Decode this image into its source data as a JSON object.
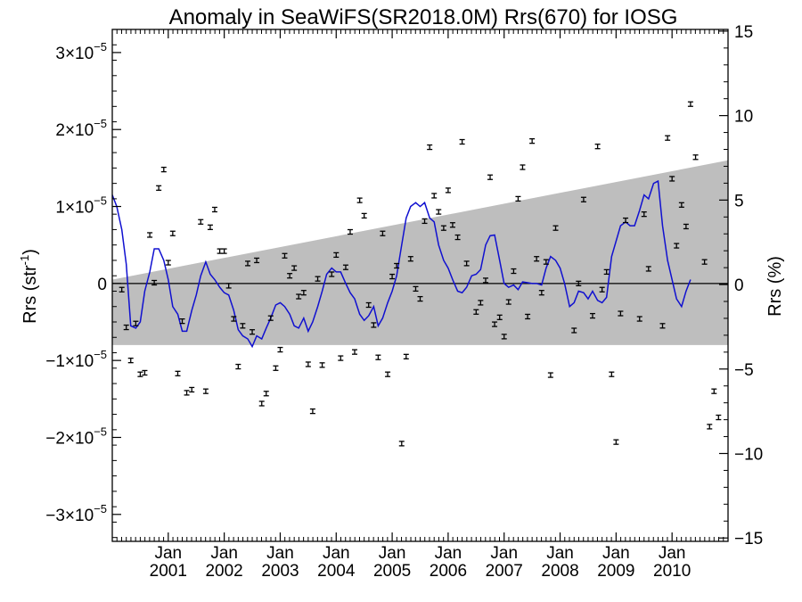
{
  "chart_data": {
    "type": "scatter",
    "title": "Anomaly in SeaWiFS(SR2018.0M) Rrs(670) for IOSG",
    "ylabel_left": {
      "main": "Rrs (str",
      "sup": "-1",
      "end": ")"
    },
    "ylabel_right": "Rrs (%)",
    "xlabel": "",
    "x_axis": {
      "range": [
        2000.0,
        2011.0
      ],
      "ticks": [
        {
          "x": 2001.0,
          "top": "Jan",
          "bottom": "2001"
        },
        {
          "x": 2002.0,
          "top": "Jan",
          "bottom": "2002"
        },
        {
          "x": 2003.0,
          "top": "Jan",
          "bottom": "2003"
        },
        {
          "x": 2004.0,
          "top": "Jan",
          "bottom": "2004"
        },
        {
          "x": 2005.0,
          "top": "Jan",
          "bottom": "2005"
        },
        {
          "x": 2006.0,
          "top": "Jan",
          "bottom": "2006"
        },
        {
          "x": 2007.0,
          "top": "Jan",
          "bottom": "2007"
        },
        {
          "x": 2008.0,
          "top": "Jan",
          "bottom": "2008"
        },
        {
          "x": 2009.0,
          "top": "Jan",
          "bottom": "2009"
        },
        {
          "x": 2010.0,
          "top": "Jan",
          "bottom": "2010"
        }
      ]
    },
    "y_left": {
      "range": [
        -3.35e-05,
        3.3e-05
      ],
      "ticks": [
        {
          "v": 3e-05,
          "label": "3×10",
          "exp": "−5"
        },
        {
          "v": 2e-05,
          "label": "2×10",
          "exp": "−5"
        },
        {
          "v": 1e-05,
          "label": "1×10",
          "exp": "−5"
        },
        {
          "v": 0,
          "label": "0",
          "exp": ""
        },
        {
          "v": -1e-05,
          "label": "−1×10",
          "exp": "−5"
        },
        {
          "v": -2e-05,
          "label": "−2×10",
          "exp": "−5"
        },
        {
          "v": -3e-05,
          "label": "−3×10",
          "exp": "−5"
        }
      ]
    },
    "y_right": {
      "range": [
        -15.2,
        15.1
      ],
      "ticks": [
        {
          "v": 15,
          "label": "15"
        },
        {
          "v": 10,
          "label": "10"
        },
        {
          "v": 5,
          "label": "5"
        },
        {
          "v": 0,
          "label": "0"
        },
        {
          "v": -5,
          "label": "−5"
        },
        {
          "v": -10,
          "label": "−10"
        },
        {
          "v": -15,
          "label": "−15"
        }
      ]
    },
    "band": {
      "upper": [
        [
          2000.0,
          5e-07
        ],
        [
          2011.0,
          1.6e-05
        ]
      ],
      "lower": [
        [
          2000.0,
          -8e-06
        ],
        [
          2011.0,
          -8e-06
        ]
      ]
    },
    "colors": {
      "band": "#bebebe",
      "smooth": "#1010d0",
      "points": "#000000",
      "zero": "#000000"
    },
    "points": [
      [
        2000.17,
        -0.08
      ],
      [
        2000.25,
        -0.57
      ],
      [
        2000.33,
        -1.0
      ],
      [
        2000.42,
        -0.52
      ],
      [
        2000.5,
        -1.18
      ],
      [
        2000.58,
        -1.16
      ],
      [
        2000.67,
        0.63
      ],
      [
        2000.75,
        0.01
      ],
      [
        2000.83,
        1.24
      ],
      [
        2000.92,
        1.48
      ],
      [
        2001.0,
        0.27
      ],
      [
        2001.08,
        0.65
      ],
      [
        2001.17,
        -1.17
      ],
      [
        2001.25,
        -0.49
      ],
      [
        2001.33,
        -1.42
      ],
      [
        2001.42,
        -1.38
      ],
      [
        2001.58,
        0.8
      ],
      [
        2001.67,
        -1.4
      ],
      [
        2001.75,
        0.73
      ],
      [
        2001.83,
        0.96
      ],
      [
        2001.92,
        0.42
      ],
      [
        2002.0,
        0.42
      ],
      [
        2002.08,
        -0.03
      ],
      [
        2002.17,
        -0.46
      ],
      [
        2002.25,
        -1.08
      ],
      [
        2002.33,
        -0.55
      ],
      [
        2002.42,
        0.26
      ],
      [
        2002.5,
        -0.63
      ],
      [
        2002.58,
        0.3
      ],
      [
        2002.67,
        -1.56
      ],
      [
        2002.75,
        -1.43
      ],
      [
        2002.83,
        -0.45
      ],
      [
        2002.92,
        -1.1
      ],
      [
        2003.0,
        -0.86
      ],
      [
        2003.08,
        0.36
      ],
      [
        2003.17,
        0.1
      ],
      [
        2003.25,
        0.2
      ],
      [
        2003.33,
        -0.17
      ],
      [
        2003.42,
        -0.12
      ],
      [
        2003.5,
        -1.05
      ],
      [
        2003.58,
        -1.66
      ],
      [
        2003.67,
        0.06
      ],
      [
        2003.75,
        -1.06
      ],
      [
        2003.92,
        0.12
      ],
      [
        2004.0,
        0.37
      ],
      [
        2004.08,
        -0.97
      ],
      [
        2004.17,
        0.21
      ],
      [
        2004.25,
        0.67
      ],
      [
        2004.33,
        -0.89
      ],
      [
        2004.42,
        1.08
      ],
      [
        2004.5,
        0.88
      ],
      [
        2004.58,
        -0.28
      ],
      [
        2004.67,
        -0.54
      ],
      [
        2004.75,
        -0.96
      ],
      [
        2004.83,
        0.65
      ],
      [
        2004.92,
        -1.18
      ],
      [
        2005.0,
        0.09
      ],
      [
        2005.08,
        0.23
      ],
      [
        2005.17,
        -2.08
      ],
      [
        2005.25,
        -0.95
      ],
      [
        2005.33,
        0.32
      ],
      [
        2005.42,
        -0.07
      ],
      [
        2005.5,
        -0.2
      ],
      [
        2005.58,
        0.81
      ],
      [
        2005.67,
        1.77
      ],
      [
        2005.75,
        1.14
      ],
      [
        2005.83,
        0.93
      ],
      [
        2005.92,
        0.72
      ],
      [
        2006.0,
        1.21
      ],
      [
        2006.08,
        0.76
      ],
      [
        2006.17,
        0.6
      ],
      [
        2006.25,
        1.84
      ],
      [
        2006.33,
        0.26
      ],
      [
        2006.5,
        -0.37
      ],
      [
        2006.58,
        -0.25
      ],
      [
        2006.67,
        0.04
      ],
      [
        2006.75,
        1.38
      ],
      [
        2006.83,
        -0.53
      ],
      [
        2006.92,
        -0.44
      ],
      [
        2007.0,
        -0.69
      ],
      [
        2007.08,
        -0.24
      ],
      [
        2007.17,
        0.16
      ],
      [
        2007.25,
        1.1
      ],
      [
        2007.33,
        1.51
      ],
      [
        2007.42,
        -0.43
      ],
      [
        2007.5,
        1.85
      ],
      [
        2007.58,
        0.32
      ],
      [
        2007.67,
        -0.12
      ],
      [
        2007.75,
        0.28
      ],
      [
        2007.83,
        -1.19
      ],
      [
        2007.92,
        0.72
      ],
      [
        2008.25,
        -0.61
      ],
      [
        2008.33,
        0.0
      ],
      [
        2008.42,
        1.09
      ],
      [
        2008.58,
        -0.42
      ],
      [
        2008.67,
        1.78
      ],
      [
        2008.75,
        -0.08
      ],
      [
        2008.83,
        0.15
      ],
      [
        2008.92,
        -1.18
      ],
      [
        2009.0,
        -2.06
      ],
      [
        2009.08,
        -0.39
      ],
      [
        2009.17,
        0.82
      ],
      [
        2009.42,
        -0.46
      ],
      [
        2009.5,
        0.9
      ],
      [
        2009.58,
        0.19
      ],
      [
        2009.83,
        -0.55
      ],
      [
        2009.92,
        1.89
      ],
      [
        2010.0,
        1.36
      ],
      [
        2010.08,
        0.49
      ],
      [
        2010.17,
        1.02
      ],
      [
        2010.25,
        0.74
      ],
      [
        2010.33,
        2.33
      ],
      [
        2010.42,
        1.64
      ],
      [
        2010.58,
        0.28
      ],
      [
        2010.67,
        -1.86
      ],
      [
        2010.75,
        -1.4
      ],
      [
        2010.83,
        -1.74
      ]
    ],
    "smooth": [
      [
        2000.0,
        1.15
      ],
      [
        2000.08,
        1.0
      ],
      [
        2000.17,
        0.7
      ],
      [
        2000.25,
        0.25
      ],
      [
        2000.33,
        -0.55
      ],
      [
        2000.42,
        -0.58
      ],
      [
        2000.5,
        -0.5
      ],
      [
        2000.58,
        -0.1
      ],
      [
        2000.67,
        0.15
      ],
      [
        2000.75,
        0.45
      ],
      [
        2000.83,
        0.45
      ],
      [
        2000.92,
        0.3
      ],
      [
        2001.0,
        0.05
      ],
      [
        2001.08,
        -0.3
      ],
      [
        2001.17,
        -0.4
      ],
      [
        2001.25,
        -0.62
      ],
      [
        2001.33,
        -0.62
      ],
      [
        2001.42,
        -0.35
      ],
      [
        2001.5,
        -0.15
      ],
      [
        2001.58,
        0.1
      ],
      [
        2001.67,
        0.28
      ],
      [
        2001.75,
        0.12
      ],
      [
        2001.83,
        0.05
      ],
      [
        2001.92,
        -0.05
      ],
      [
        2002.0,
        -0.12
      ],
      [
        2002.08,
        -0.15
      ],
      [
        2002.17,
        -0.35
      ],
      [
        2002.25,
        -0.6
      ],
      [
        2002.33,
        -0.68
      ],
      [
        2002.42,
        -0.72
      ],
      [
        2002.5,
        -0.82
      ],
      [
        2002.58,
        -0.68
      ],
      [
        2002.67,
        -0.72
      ],
      [
        2002.75,
        -0.58
      ],
      [
        2002.83,
        -0.45
      ],
      [
        2002.92,
        -0.28
      ],
      [
        2003.0,
        -0.25
      ],
      [
        2003.08,
        -0.3
      ],
      [
        2003.17,
        -0.4
      ],
      [
        2003.25,
        -0.55
      ],
      [
        2003.33,
        -0.58
      ],
      [
        2003.42,
        -0.45
      ],
      [
        2003.5,
        -0.62
      ],
      [
        2003.58,
        -0.5
      ],
      [
        2003.67,
        -0.3
      ],
      [
        2003.75,
        -0.1
      ],
      [
        2003.83,
        0.12
      ],
      [
        2003.92,
        0.2
      ],
      [
        2004.0,
        0.15
      ],
      [
        2004.08,
        0.15
      ],
      [
        2004.17,
        0.0
      ],
      [
        2004.25,
        -0.12
      ],
      [
        2004.33,
        -0.2
      ],
      [
        2004.42,
        -0.4
      ],
      [
        2004.5,
        -0.48
      ],
      [
        2004.58,
        -0.42
      ],
      [
        2004.67,
        -0.3
      ],
      [
        2004.75,
        -0.55
      ],
      [
        2004.83,
        -0.45
      ],
      [
        2004.92,
        -0.25
      ],
      [
        2005.0,
        -0.1
      ],
      [
        2005.08,
        0.1
      ],
      [
        2005.17,
        0.5
      ],
      [
        2005.25,
        0.85
      ],
      [
        2005.33,
        1.0
      ],
      [
        2005.42,
        1.05
      ],
      [
        2005.5,
        1.0
      ],
      [
        2005.58,
        1.05
      ],
      [
        2005.67,
        0.85
      ],
      [
        2005.75,
        0.8
      ],
      [
        2005.83,
        0.5
      ],
      [
        2005.92,
        0.3
      ],
      [
        2006.0,
        0.2
      ],
      [
        2006.08,
        0.05
      ],
      [
        2006.17,
        -0.1
      ],
      [
        2006.25,
        -0.12
      ],
      [
        2006.33,
        -0.05
      ],
      [
        2006.42,
        0.1
      ],
      [
        2006.5,
        0.12
      ],
      [
        2006.58,
        0.18
      ],
      [
        2006.67,
        0.5
      ],
      [
        2006.75,
        0.62
      ],
      [
        2006.83,
        0.63
      ],
      [
        2006.92,
        0.3
      ],
      [
        2007.0,
        0.0
      ],
      [
        2007.08,
        -0.05
      ],
      [
        2007.17,
        -0.02
      ],
      [
        2007.25,
        -0.08
      ],
      [
        2007.33,
        0.02
      ],
      [
        2007.42,
        0.01
      ],
      [
        2007.5,
        0.0
      ],
      [
        2007.58,
        0.0
      ],
      [
        2007.67,
        -0.02
      ],
      [
        2007.75,
        0.2
      ],
      [
        2007.83,
        0.35
      ],
      [
        2007.92,
        0.3
      ],
      [
        2008.0,
        0.2
      ],
      [
        2008.08,
        0.0
      ],
      [
        2008.17,
        -0.3
      ],
      [
        2008.25,
        -0.25
      ],
      [
        2008.33,
        -0.1
      ],
      [
        2008.42,
        -0.12
      ],
      [
        2008.5,
        -0.2
      ],
      [
        2008.58,
        -0.1
      ],
      [
        2008.67,
        -0.22
      ],
      [
        2008.75,
        -0.25
      ],
      [
        2008.83,
        -0.18
      ],
      [
        2008.92,
        0.35
      ],
      [
        2009.0,
        0.55
      ],
      [
        2009.08,
        0.75
      ],
      [
        2009.17,
        0.8
      ],
      [
        2009.25,
        0.75
      ],
      [
        2009.33,
        0.75
      ],
      [
        2009.42,
        0.95
      ],
      [
        2009.5,
        1.15
      ],
      [
        2009.58,
        1.1
      ],
      [
        2009.67,
        1.3
      ],
      [
        2009.75,
        1.33
      ],
      [
        2009.83,
        0.75
      ],
      [
        2009.92,
        0.3
      ],
      [
        2010.0,
        0.05
      ],
      [
        2010.08,
        -0.2
      ],
      [
        2010.17,
        -0.3
      ],
      [
        2010.25,
        -0.1
      ],
      [
        2010.33,
        0.05
      ]
    ]
  }
}
